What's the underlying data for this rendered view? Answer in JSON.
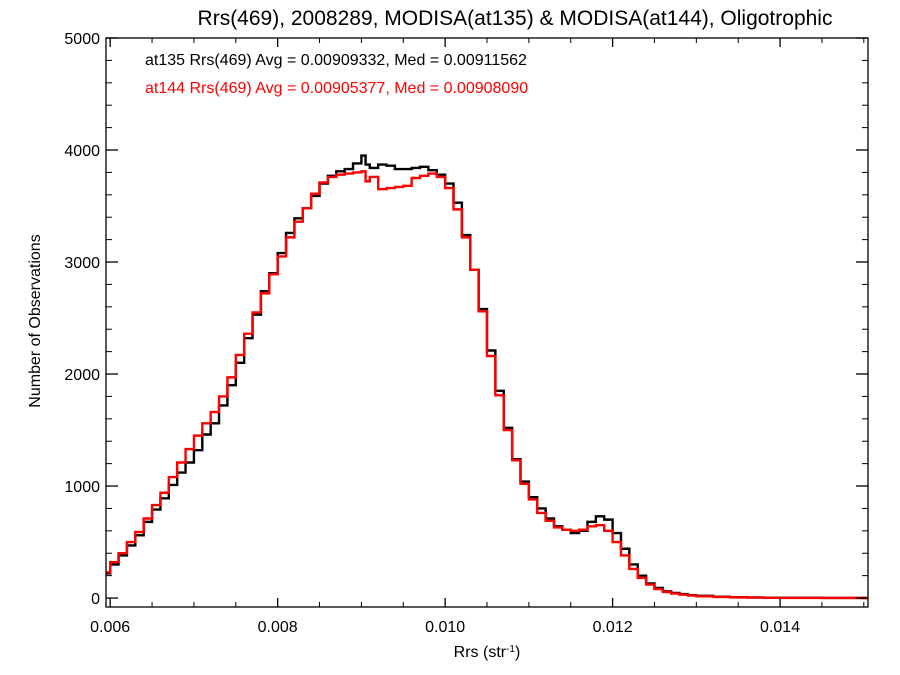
{
  "chart_data": {
    "type": "line",
    "title": "Rrs(469), 2008289, MODISA(at135) & MODISA(at144), Oligotrophic",
    "xlabel": "Rrs (str",
    "xlabel_sup": "-1",
    "xlabel_suffix": ")",
    "ylabel": "Number of Observations",
    "xlim": [
      0.00595,
      0.01505
    ],
    "ylim": [
      -80,
      5000
    ],
    "xticks": [
      0.006,
      0.008,
      0.01,
      0.012,
      0.014
    ],
    "xtick_labels": [
      "0.006",
      "0.008",
      "0.010",
      "0.012",
      "0.014"
    ],
    "yticks": [
      0,
      1000,
      2000,
      3000,
      4000,
      5000
    ],
    "ytick_labels": [
      "0",
      "1000",
      "2000",
      "3000",
      "4000",
      "5000"
    ],
    "grid": false,
    "legend_placement": "top-left",
    "series": [
      {
        "name": "at135",
        "label": "at135 Rrs(469) Avg = 0.00909332, Med = 0.00911562",
        "color": "#000000",
        "style": "step",
        "x": [
          0.00595,
          0.006,
          0.0061,
          0.0062,
          0.0063,
          0.0064,
          0.0065,
          0.0066,
          0.0067,
          0.0068,
          0.0069,
          0.007,
          0.0071,
          0.0072,
          0.0073,
          0.0074,
          0.0075,
          0.0076,
          0.0077,
          0.0078,
          0.0079,
          0.008,
          0.0081,
          0.0082,
          0.0083,
          0.0084,
          0.0085,
          0.0086,
          0.0087,
          0.0088,
          0.0089,
          0.009,
          0.00905,
          0.0091,
          0.0092,
          0.0093,
          0.0094,
          0.0095,
          0.0096,
          0.0097,
          0.0098,
          0.0099,
          0.01,
          0.0101,
          0.0102,
          0.0103,
          0.0104,
          0.0105,
          0.0106,
          0.0107,
          0.0108,
          0.0109,
          0.011,
          0.0111,
          0.0112,
          0.0113,
          0.0114,
          0.0115,
          0.0116,
          0.0117,
          0.0118,
          0.0119,
          0.012,
          0.0121,
          0.0122,
          0.0123,
          0.0124,
          0.0125,
          0.0126,
          0.0127,
          0.0128,
          0.0129,
          0.013,
          0.0132,
          0.0134,
          0.0136,
          0.0138,
          0.014,
          0.0145,
          0.015
        ],
        "y": [
          220,
          300,
          380,
          470,
          560,
          680,
          790,
          890,
          1010,
          1120,
          1210,
          1320,
          1460,
          1560,
          1720,
          1900,
          2100,
          2320,
          2530,
          2740,
          2900,
          3080,
          3260,
          3390,
          3480,
          3590,
          3700,
          3770,
          3810,
          3830,
          3880,
          3950,
          3870,
          3840,
          3870,
          3860,
          3830,
          3830,
          3840,
          3850,
          3820,
          3780,
          3700,
          3530,
          3240,
          2930,
          2580,
          2210,
          1850,
          1520,
          1240,
          1040,
          900,
          800,
          710,
          640,
          610,
          580,
          600,
          680,
          730,
          700,
          580,
          440,
          300,
          200,
          130,
          90,
          60,
          45,
          35,
          25,
          20,
          12,
          8,
          5,
          3,
          2,
          1,
          0
        ]
      },
      {
        "name": "at144",
        "label": "at144 Rrs(469) Avg = 0.00905377, Med = 0.00908090",
        "color": "#ff0000",
        "style": "step",
        "x": [
          0.00595,
          0.006,
          0.0061,
          0.0062,
          0.0063,
          0.0064,
          0.0065,
          0.0066,
          0.0067,
          0.0068,
          0.0069,
          0.007,
          0.0071,
          0.0072,
          0.0073,
          0.0074,
          0.0075,
          0.0076,
          0.0077,
          0.0078,
          0.0079,
          0.008,
          0.0081,
          0.0082,
          0.0083,
          0.0084,
          0.0085,
          0.0086,
          0.0087,
          0.0088,
          0.0089,
          0.009,
          0.00905,
          0.0091,
          0.0092,
          0.0093,
          0.0094,
          0.0095,
          0.0096,
          0.0097,
          0.0098,
          0.0099,
          0.01,
          0.0101,
          0.0102,
          0.0103,
          0.0104,
          0.0105,
          0.0106,
          0.0107,
          0.0108,
          0.0109,
          0.011,
          0.0111,
          0.0112,
          0.0113,
          0.0114,
          0.0115,
          0.0116,
          0.0117,
          0.0118,
          0.0119,
          0.012,
          0.0121,
          0.0122,
          0.0123,
          0.0124,
          0.0125,
          0.0126,
          0.0127,
          0.0128,
          0.0129,
          0.013,
          0.0132,
          0.0134,
          0.0136,
          0.0138,
          0.014,
          0.0145,
          0.015
        ],
        "y": [
          230,
          320,
          400,
          500,
          590,
          710,
          830,
          940,
          1080,
          1210,
          1330,
          1450,
          1560,
          1660,
          1800,
          1970,
          2170,
          2360,
          2550,
          2720,
          2890,
          3050,
          3220,
          3360,
          3480,
          3610,
          3710,
          3760,
          3780,
          3790,
          3800,
          3810,
          3720,
          3760,
          3650,
          3660,
          3670,
          3680,
          3750,
          3770,
          3790,
          3760,
          3660,
          3470,
          3220,
          2930,
          2560,
          2160,
          1810,
          1500,
          1230,
          1020,
          880,
          760,
          690,
          630,
          610,
          600,
          610,
          640,
          650,
          600,
          500,
          380,
          260,
          180,
          120,
          80,
          55,
          40,
          30,
          22,
          15,
          10,
          6,
          4,
          2,
          1,
          1,
          0
        ]
      }
    ]
  }
}
